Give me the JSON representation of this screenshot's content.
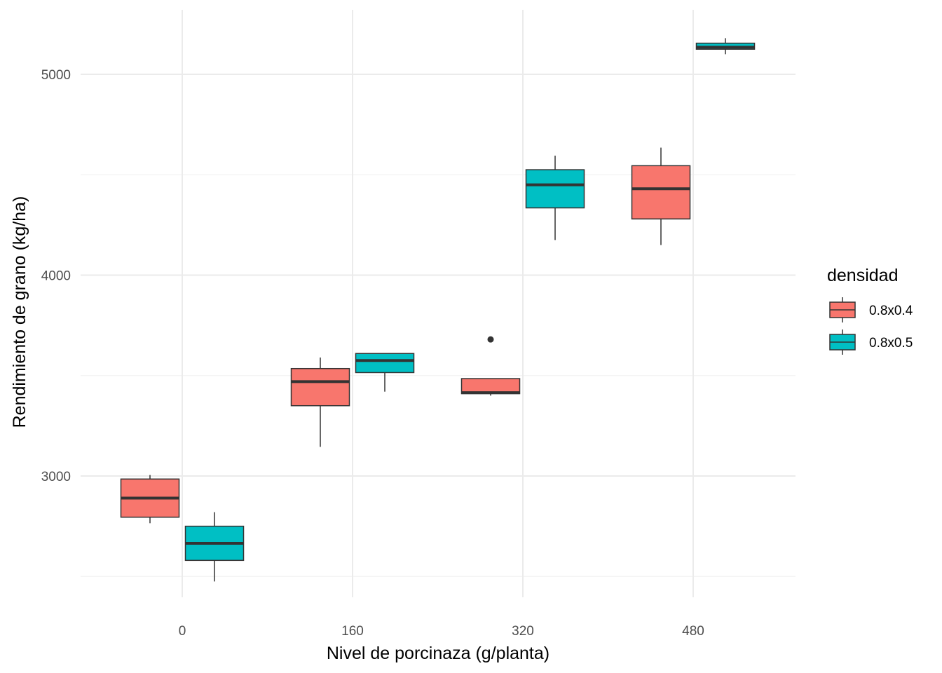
{
  "chart_data": {
    "type": "boxplot",
    "xlabel": "Nivel de porcinaza (g/planta)",
    "ylabel": "Rendimiento de grano (kg/ha)",
    "categories": [
      "0",
      "160",
      "320",
      "480"
    ],
    "yticks": [
      "3000",
      "4000",
      "5000"
    ],
    "ylim": [
      2450,
      5320
    ],
    "legend": {
      "title": "densidad",
      "position": "right"
    },
    "series": [
      {
        "name": "0.8x0.4",
        "color": "#F8766D",
        "boxes": [
          {
            "category": "0",
            "min": 2765,
            "q1": 2795,
            "median": 2890,
            "q3": 2985,
            "max": 3005,
            "outliers": []
          },
          {
            "category": "160",
            "min": 3145,
            "q1": 3350,
            "median": 3470,
            "q3": 3535,
            "max": 3590,
            "outliers": []
          },
          {
            "category": "320",
            "min": 3400,
            "q1": 3410,
            "median": 3415,
            "q3": 3485,
            "max": 3485,
            "outliers": [
              3680
            ]
          },
          {
            "category": "480",
            "min": 4150,
            "q1": 4280,
            "median": 4430,
            "q3": 4545,
            "max": 4635,
            "outliers": []
          }
        ]
      },
      {
        "name": "0.8x0.5",
        "color": "#00BFC4",
        "boxes": [
          {
            "category": "0",
            "min": 2475,
            "q1": 2580,
            "median": 2665,
            "q3": 2750,
            "max": 2820,
            "outliers": []
          },
          {
            "category": "160",
            "min": 3420,
            "q1": 3515,
            "median": 3575,
            "q3": 3610,
            "max": 3610,
            "outliers": []
          },
          {
            "category": "320",
            "min": 4175,
            "q1": 4335,
            "median": 4450,
            "q3": 4525,
            "max": 4595,
            "outliers": []
          },
          {
            "category": "480",
            "min": 5100,
            "q1": 5125,
            "median": 5135,
            "q3": 5155,
            "max": 5180,
            "outliers": []
          }
        ]
      }
    ]
  }
}
